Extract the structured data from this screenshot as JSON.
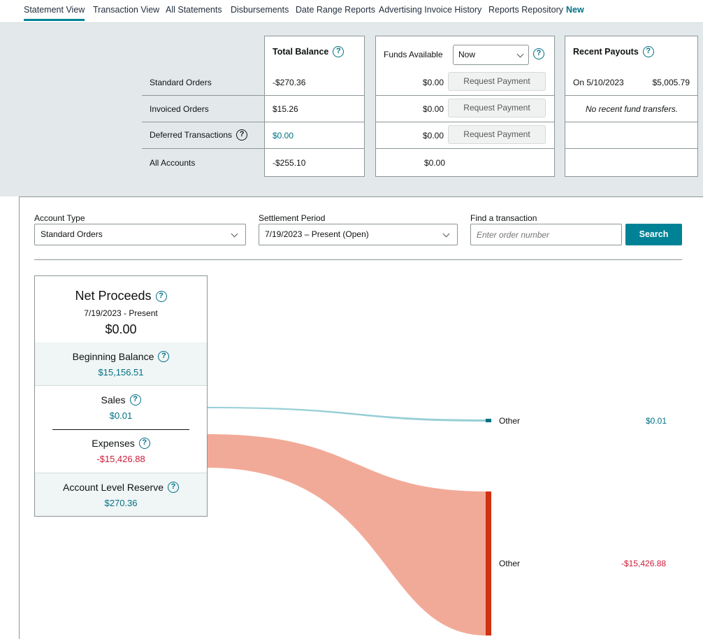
{
  "nav": {
    "tabs": [
      "Statement View",
      "Transaction View",
      "All Statements",
      "Disbursements",
      "Date Range Reports",
      "Advertising Invoice History",
      "Reports Repository"
    ],
    "new_badge": "New"
  },
  "summary": {
    "rows": [
      "Standard Orders",
      "Invoiced Orders",
      "Deferred Transactions",
      "All Accounts"
    ],
    "total_balance": {
      "header": "Total Balance",
      "values": [
        "-$270.36",
        "$15.26",
        "$0.00",
        "-$255.10"
      ]
    },
    "funds_available": {
      "header": "Funds Available",
      "select_value": "Now",
      "values": [
        "$0.00",
        "$0.00",
        "$0.00",
        "$0.00"
      ],
      "request_label": "Request Payment"
    },
    "recent_payouts": {
      "header": "Recent Payouts",
      "payout_date": "On 5/10/2023",
      "payout_amount": "$5,005.79",
      "no_transfers": "No recent fund transfers."
    }
  },
  "filters": {
    "account_type_label": "Account Type",
    "account_type_value": "Standard Orders",
    "settlement_label": "Settlement Period",
    "settlement_value": "7/19/2023 – Present (Open)",
    "find_label": "Find a transaction",
    "find_placeholder": "Enter order number",
    "search_label": "Search"
  },
  "net_proceeds": {
    "title": "Net Proceeds",
    "period": "7/19/2023 - Present",
    "amount": "$0.00",
    "beginning_label": "Beginning Balance",
    "beginning_value": "$15,156.51",
    "sales_label": "Sales",
    "sales_value": "$0.01",
    "expenses_label": "Expenses",
    "expenses_value": "-$15,426.88",
    "reserve_label": "Account Level Reserve",
    "reserve_value": "$270.36"
  },
  "flows": [
    {
      "label": "Other",
      "value": "$0.01",
      "color": "#007185"
    },
    {
      "label": "Other",
      "value": "-$15,426.88",
      "color": "#cc1c39"
    }
  ],
  "colors": {
    "accent": "#008296",
    "expense_flow": "#f2aa98",
    "expense_bar": "#d13212",
    "sales_flow": "#97cfd6"
  }
}
